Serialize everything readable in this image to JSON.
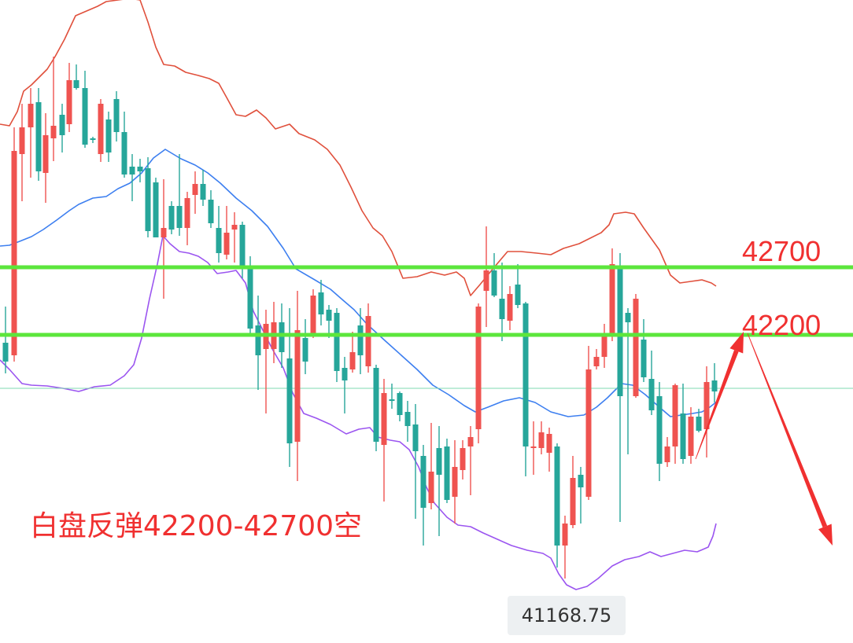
{
  "chart_data": {
    "type": "candlestick",
    "horizontal_levels": [
      {
        "label": "42700",
        "value": 42700,
        "color": "#5ce63c"
      },
      {
        "label": "42200",
        "value": 42200,
        "color": "#5ce63c"
      }
    ],
    "annotation": "白盘反弹42200-42700空",
    "low_marker": {
      "label": "41168.75",
      "value": 41168.75
    },
    "colors": {
      "up": "#ef5350",
      "down": "#26a69a",
      "upper_band": "#e0503c",
      "middle_band": "#3d7ff0",
      "lower_band": "#9b55f0",
      "arrow": "#f03030",
      "price_line": "#7fd9b0"
    }
  }
}
